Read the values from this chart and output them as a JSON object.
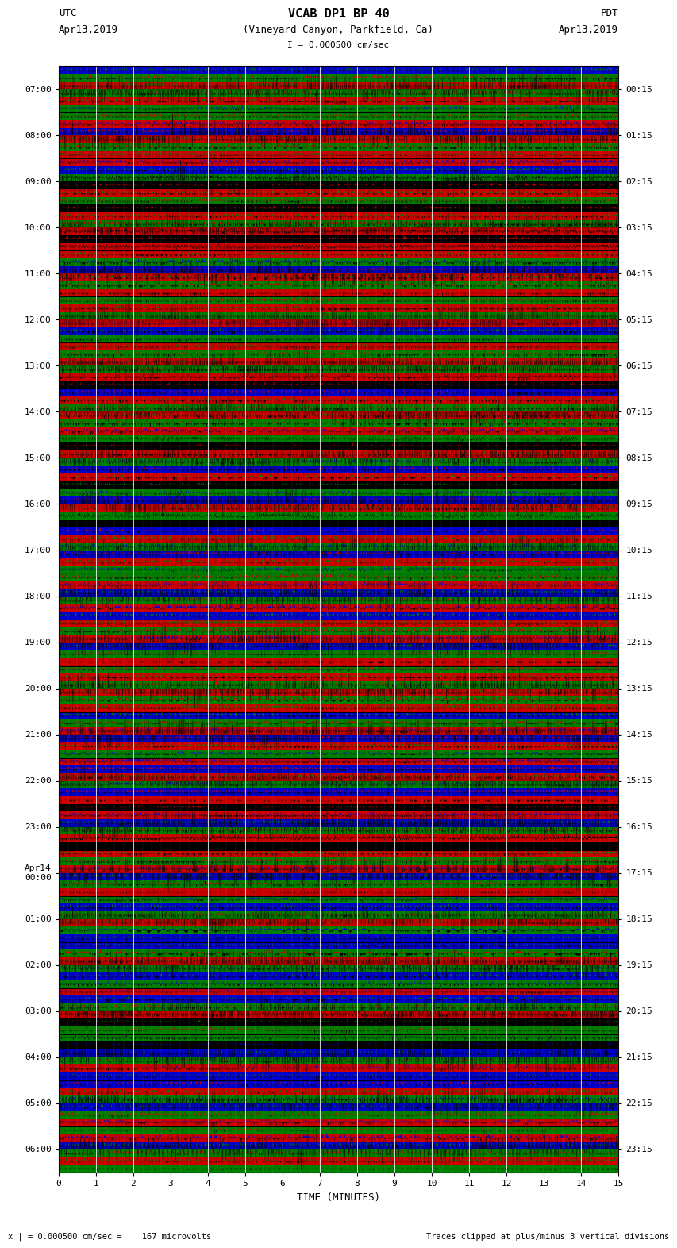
{
  "title_line1": "VCAB DP1 BP 40",
  "title_line2": "(Vineyard Canyon, Parkfield, Ca)",
  "scale_label": "I = 0.000500 cm/sec",
  "left_label_top": "UTC",
  "left_label_date": "Apr13,2019",
  "right_label_top": "PDT",
  "right_label_date": "Apr13,2019",
  "bottom_left": "x | = 0.000500 cm/sec =    167 microvolts",
  "bottom_right": "Traces clipped at plus/minus 3 vertical divisions",
  "xlabel": "TIME (MINUTES)",
  "num_rows": 24,
  "minutes_per_row": 60,
  "fig_width": 8.5,
  "fig_height": 16.13,
  "dpi": 100,
  "left_tick_labels": [
    "07:00",
    "08:00",
    "09:00",
    "10:00",
    "11:00",
    "12:00",
    "13:00",
    "14:00",
    "15:00",
    "16:00",
    "17:00",
    "18:00",
    "19:00",
    "20:00",
    "21:00",
    "22:00",
    "23:00",
    "Apr14\n00:00",
    "01:00",
    "02:00",
    "03:00",
    "04:00",
    "05:00",
    "06:00"
  ],
  "right_tick_labels": [
    "00:15",
    "01:15",
    "02:15",
    "03:15",
    "04:15",
    "05:15",
    "06:15",
    "07:15",
    "08:15",
    "09:15",
    "10:15",
    "11:15",
    "12:15",
    "13:15",
    "14:15",
    "15:15",
    "16:15",
    "17:15",
    "18:15",
    "19:15",
    "20:15",
    "21:15",
    "22:15",
    "23:15"
  ],
  "colors": {
    "green": "#008000",
    "red": "#cc0000",
    "blue": "#0000cc",
    "black": "#000000",
    "white": "#ffffff",
    "fig_bg": "#ffffff"
  },
  "seed": 12345,
  "row_band_patterns": [
    [
      "#0000cc",
      "#008000",
      "#cc0000",
      "#008000",
      "#cc0000",
      "#008000"
    ],
    [
      "#008000",
      "#cc0000",
      "#0000cc",
      "#cc0000",
      "#008000",
      "#cc0000"
    ],
    [
      "#cc0000",
      "#0000cc",
      "#008000",
      "#000000",
      "#cc0000",
      "#008000"
    ],
    [
      "#000000",
      "#cc0000",
      "#008000",
      "#cc0000",
      "#000000",
      "#cc0000"
    ],
    [
      "#cc0000",
      "#008000",
      "#0000cc",
      "#cc0000",
      "#008000",
      "#cc0000"
    ],
    [
      "#008000",
      "#cc0000",
      "#008000",
      "#cc0000",
      "#0000cc",
      "#008000"
    ],
    [
      "#cc0000",
      "#008000",
      "#cc0000",
      "#008000",
      "#cc0000",
      "#000000"
    ],
    [
      "#0000cc",
      "#cc0000",
      "#008000",
      "#cc0000",
      "#008000",
      "#cc0000"
    ],
    [
      "#008000",
      "#000000",
      "#cc0000",
      "#008000",
      "#0000cc",
      "#cc0000"
    ],
    [
      "#000000",
      "#008000",
      "#0000cc",
      "#cc0000",
      "#008000",
      "#000000"
    ],
    [
      "#0000cc",
      "#cc0000",
      "#008000",
      "#0000cc",
      "#cc0000",
      "#008000"
    ],
    [
      "#008000",
      "#cc0000",
      "#0000cc",
      "#008000",
      "#cc0000",
      "#0000cc"
    ],
    [
      "#cc0000",
      "#008000",
      "#cc0000",
      "#0000cc",
      "#008000",
      "#cc0000"
    ],
    [
      "#008000",
      "#cc0000",
      "#008000",
      "#cc0000",
      "#008000",
      "#cc0000"
    ],
    [
      "#0000cc",
      "#008000",
      "#cc0000",
      "#0000cc",
      "#cc0000",
      "#008000"
    ],
    [
      "#cc0000",
      "#0000cc",
      "#cc0000",
      "#008000",
      "#0000cc",
      "#cc0000"
    ],
    [
      "#000000",
      "#cc0000",
      "#0000cc",
      "#008000",
      "#cc0000",
      "#000000"
    ],
    [
      "#cc0000",
      "#008000",
      "#cc0000",
      "#0000cc",
      "#008000",
      "#cc0000"
    ],
    [
      "#008000",
      "#0000cc",
      "#008000",
      "#cc0000",
      "#008000",
      "#0000cc"
    ],
    [
      "#0000cc",
      "#008000",
      "#cc0000",
      "#008000",
      "#0000cc",
      "#008000"
    ],
    [
      "#cc0000",
      "#0000cc",
      "#008000",
      "#cc0000",
      "#000000",
      "#008000"
    ],
    [
      "#008000",
      "#000000",
      "#0000cc",
      "#008000",
      "#cc0000",
      "#0000cc"
    ],
    [
      "#0000cc",
      "#cc0000",
      "#008000",
      "#0000cc",
      "#008000",
      "#cc0000"
    ],
    [
      "#008000",
      "#cc0000",
      "#0000cc",
      "#008000",
      "#cc0000",
      "#008000"
    ]
  ]
}
